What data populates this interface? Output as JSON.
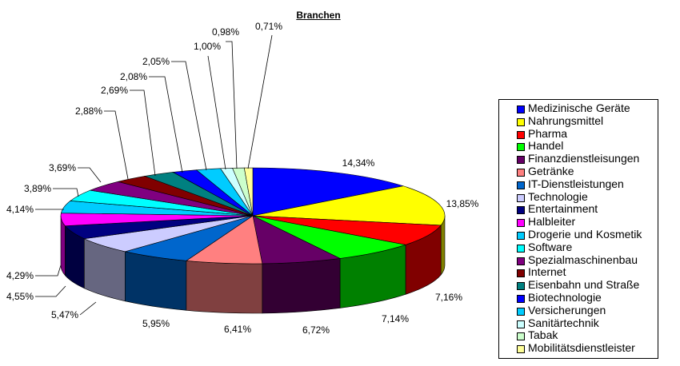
{
  "chart_data": {
    "type": "pie",
    "title": "Branchen",
    "legend_position": "right",
    "slices": [
      {
        "label": "Medizinische Geräte",
        "value": 14.34,
        "value_label": "14,34%",
        "color": "#0000ff"
      },
      {
        "label": "Nahrungsmittel",
        "value": 13.85,
        "value_label": "13,85%",
        "color": "#ffff00"
      },
      {
        "label": "Pharma",
        "value": 7.16,
        "value_label": "7,16%",
        "color": "#ff0000"
      },
      {
        "label": "Handel",
        "value": 7.14,
        "value_label": "7,14%",
        "color": "#00ff00"
      },
      {
        "label": "Finanzdienstleisungen",
        "value": 6.72,
        "value_label": "6,72%",
        "color": "#660066"
      },
      {
        "label": "Getränke",
        "value": 6.41,
        "value_label": "6,41%",
        "color": "#ff8080"
      },
      {
        "label": "IT-Dienstleistungen",
        "value": 5.95,
        "value_label": "5,95%",
        "color": "#0066cc"
      },
      {
        "label": "Technologie",
        "value": 5.47,
        "value_label": "5,47%",
        "color": "#ccccff"
      },
      {
        "label": "Entertainment",
        "value": 4.55,
        "value_label": "4,55%",
        "color": "#000080"
      },
      {
        "label": "Halbleiter",
        "value": 4.29,
        "value_label": "4,29%",
        "color": "#ff00ff"
      },
      {
        "label": "Drogerie und Kosmetik",
        "value": 4.14,
        "value_label": "4,14%",
        "color": "#00ccff"
      },
      {
        "label": "Software",
        "value": 3.89,
        "value_label": "3,89%",
        "color": "#00ffff"
      },
      {
        "label": "Spezialmaschinenbau",
        "value": 3.69,
        "value_label": "3,69%",
        "color": "#800080"
      },
      {
        "label": "Internet",
        "value": 2.88,
        "value_label": "2,88%",
        "color": "#800000"
      },
      {
        "label": "Eisenbahn und Straße",
        "value": 2.69,
        "value_label": "2,69%",
        "color": "#008080"
      },
      {
        "label": "Biotechnologie",
        "value": 2.08,
        "value_label": "2,08%",
        "color": "#0000ff"
      },
      {
        "label": "Versicherungen",
        "value": 2.05,
        "value_label": "2,05%",
        "color": "#00ccff"
      },
      {
        "label": "Sanitärtechnik",
        "value": 1.0,
        "value_label": "1,00%",
        "color": "#ccffff"
      },
      {
        "label": "Tabak",
        "value": 0.98,
        "value_label": "0,98%",
        "color": "#ccffcc"
      },
      {
        "label": "Mobilitätsdienstleister",
        "value": 0.71,
        "value_label": "0,71%",
        "color": "#ffff99"
      }
    ]
  }
}
